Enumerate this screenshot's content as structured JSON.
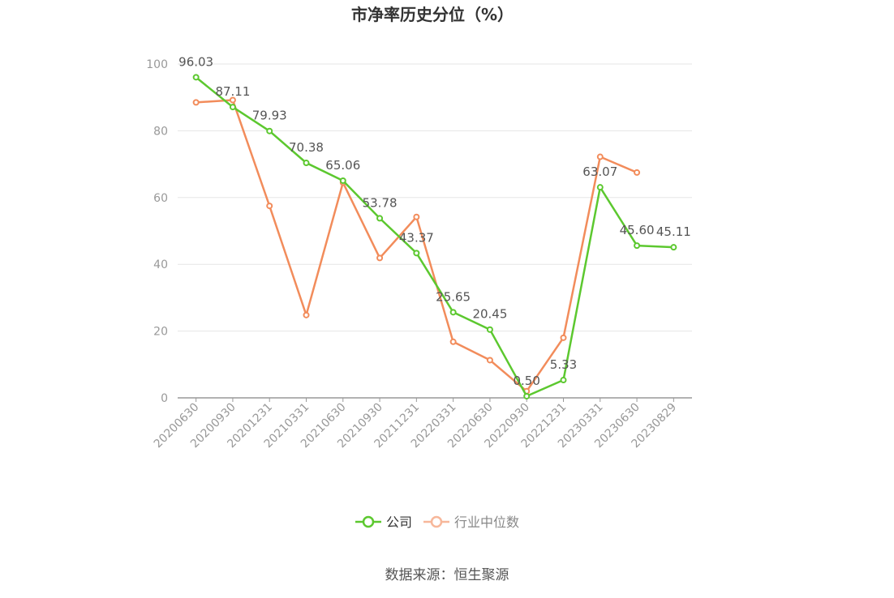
{
  "chart_data": {
    "type": "line",
    "title": "市净率历史分位（%）",
    "xlabel": "",
    "ylabel": "",
    "ylim": [
      0,
      100
    ],
    "yticks": [
      0,
      20,
      40,
      60,
      80,
      100
    ],
    "grid": true,
    "legend_position": "bottom",
    "categories": [
      "20200630",
      "20200930",
      "20201231",
      "20210331",
      "20210630",
      "20210930",
      "20211231",
      "20220331",
      "20220630",
      "20220930",
      "20221231",
      "20230331",
      "20230630",
      "20230829"
    ],
    "series": [
      {
        "name": "公司",
        "color": "#5cc82f",
        "values": [
          96.03,
          87.11,
          79.93,
          70.38,
          65.06,
          53.78,
          43.37,
          25.65,
          20.45,
          0.5,
          5.33,
          63.07,
          45.6,
          45.11
        ],
        "data_labels": [
          "96.03",
          "87.11",
          "79.93",
          "70.38",
          "65.06",
          "53.78",
          "43.37",
          "25.65",
          "20.45",
          "0.50",
          "5.33",
          "63.07",
          "45.60",
          "45.11"
        ]
      },
      {
        "name": "行业中位数",
        "color": "#f28c5b",
        "values": [
          88.5,
          89.2,
          57.5,
          24.8,
          64.5,
          41.9,
          54.2,
          16.8,
          11.3,
          2.0,
          18.0,
          72.2,
          67.5,
          null
        ]
      }
    ]
  },
  "source": "数据来源：恒生聚源"
}
